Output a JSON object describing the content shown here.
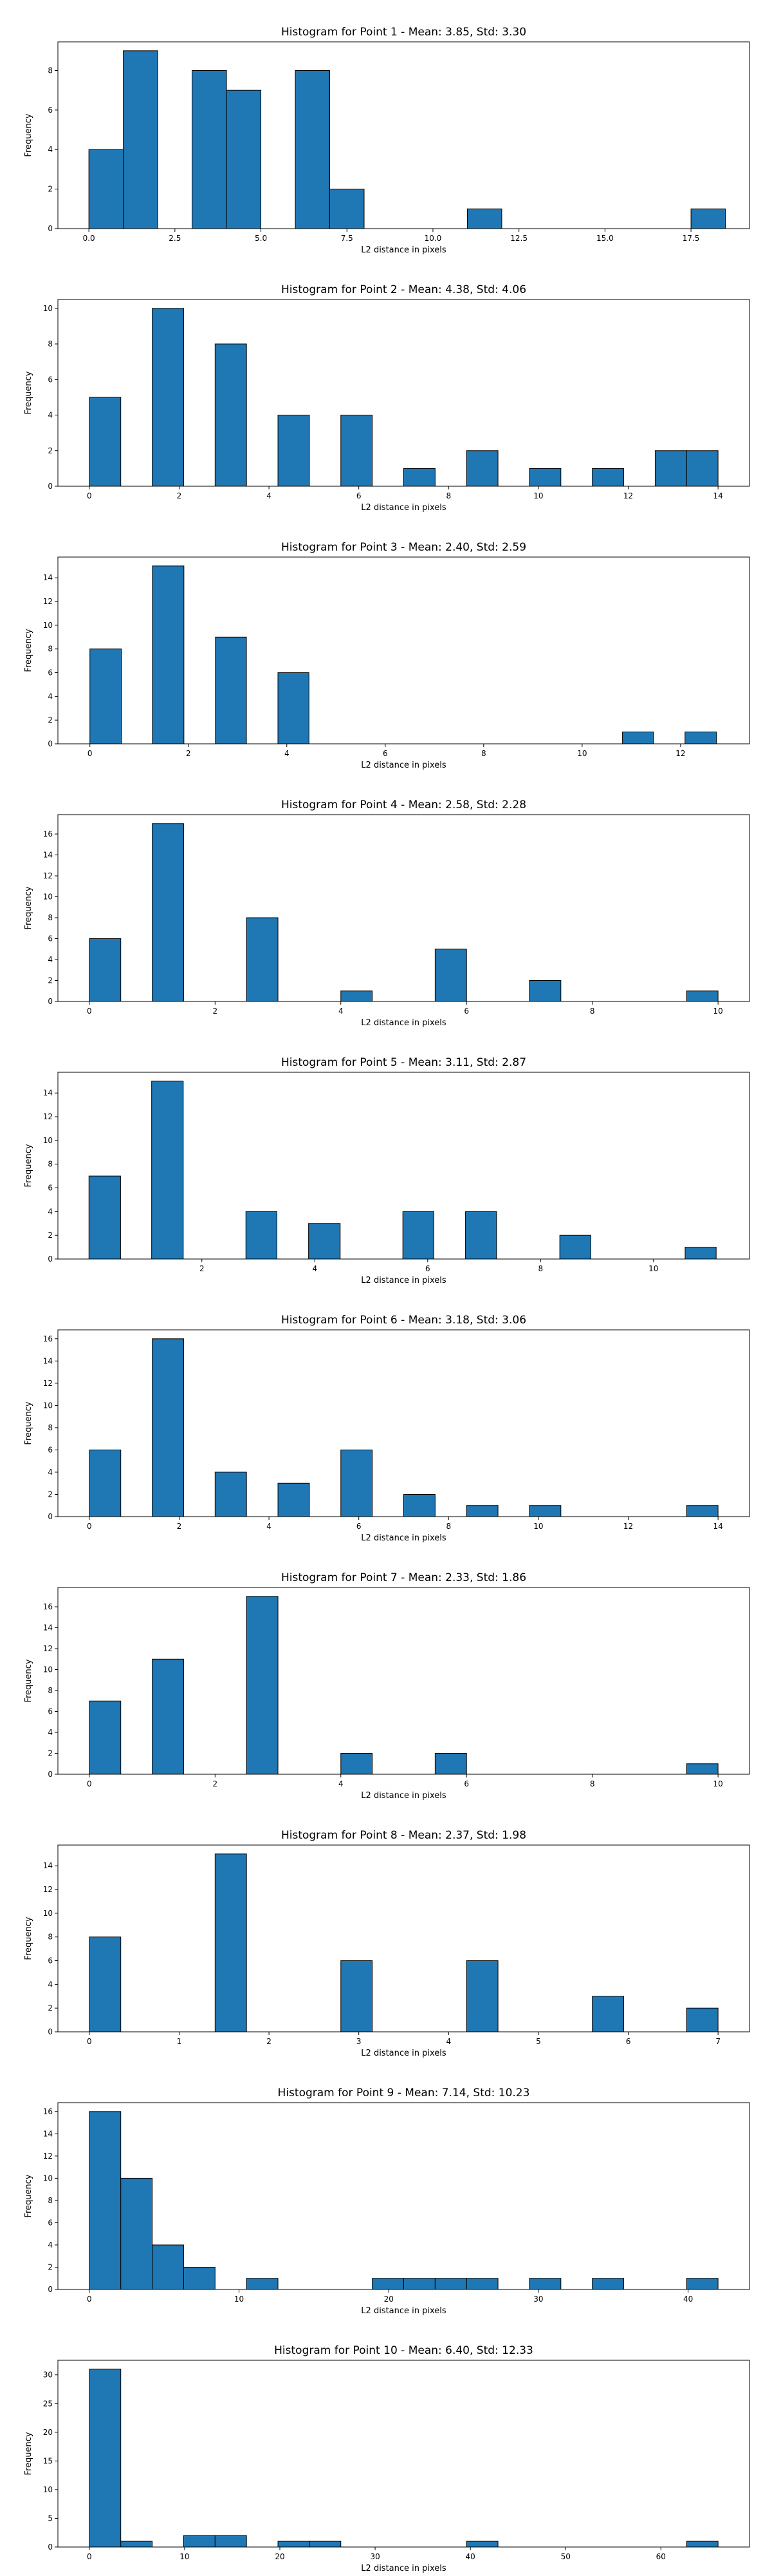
{
  "chart_data": [
    {
      "type": "bar",
      "title": "Histogram for Point 1 - Mean: 3.85, Std: 3.30",
      "xlabel": "L2 distance in pixels",
      "ylabel": "Frequency",
      "color": "#1f77b4",
      "xlim": [
        -0.9,
        19.2
      ],
      "ylim": [
        0,
        9.45
      ],
      "xticks": [
        {
          "v": 0,
          "label": "0.0"
        },
        {
          "v": 2.5,
          "label": "2.5"
        },
        {
          "v": 5,
          "label": "5.0"
        },
        {
          "v": 7.5,
          "label": "7.5"
        },
        {
          "v": 10,
          "label": "10.0"
        },
        {
          "v": 12.5,
          "label": "12.5"
        },
        {
          "v": 15,
          "label": "15.0"
        },
        {
          "v": 17.5,
          "label": "17.5"
        }
      ],
      "yticks": [
        {
          "v": 0,
          "label": "0"
        },
        {
          "v": 2,
          "label": "2"
        },
        {
          "v": 4,
          "label": "4"
        },
        {
          "v": 6,
          "label": "6"
        },
        {
          "v": 8,
          "label": "8"
        }
      ],
      "bins": [
        {
          "x0": 0,
          "x1": 1,
          "count": 4
        },
        {
          "x0": 1,
          "x1": 2,
          "count": 9
        },
        {
          "x0": 3,
          "x1": 4,
          "count": 8
        },
        {
          "x0": 4,
          "x1": 5,
          "count": 7
        },
        {
          "x0": 6,
          "x1": 7,
          "count": 8
        },
        {
          "x0": 7,
          "x1": 8,
          "count": 2
        },
        {
          "x0": 11,
          "x1": 12,
          "count": 1
        },
        {
          "x0": 17.5,
          "x1": 18.5,
          "count": 1
        }
      ]
    },
    {
      "type": "bar",
      "title": "Histogram for Point 2 - Mean: 4.38, Std: 4.06",
      "xlabel": "L2 distance in pixels",
      "ylabel": "Frequency",
      "color": "#1f77b4",
      "xlim": [
        -0.7,
        14.7
      ],
      "ylim": [
        0,
        10.5
      ],
      "xticks": [
        {
          "v": 0,
          "label": "0"
        },
        {
          "v": 2,
          "label": "2"
        },
        {
          "v": 4,
          "label": "4"
        },
        {
          "v": 6,
          "label": "6"
        },
        {
          "v": 8,
          "label": "8"
        },
        {
          "v": 10,
          "label": "10"
        },
        {
          "v": 12,
          "label": "12"
        },
        {
          "v": 14,
          "label": "14"
        }
      ],
      "yticks": [
        {
          "v": 0,
          "label": "0"
        },
        {
          "v": 2,
          "label": "2"
        },
        {
          "v": 4,
          "label": "4"
        },
        {
          "v": 6,
          "label": "6"
        },
        {
          "v": 8,
          "label": "8"
        },
        {
          "v": 10,
          "label": "10"
        }
      ],
      "bins": [
        {
          "x0": 0,
          "x1": 0.7,
          "count": 5
        },
        {
          "x0": 1.4,
          "x1": 2.1,
          "count": 10
        },
        {
          "x0": 2.8,
          "x1": 3.5,
          "count": 8
        },
        {
          "x0": 4.2,
          "x1": 4.9,
          "count": 4
        },
        {
          "x0": 5.6,
          "x1": 6.3,
          "count": 4
        },
        {
          "x0": 7.0,
          "x1": 7.7,
          "count": 1
        },
        {
          "x0": 8.4,
          "x1": 9.1,
          "count": 2
        },
        {
          "x0": 9.8,
          "x1": 10.5,
          "count": 1
        },
        {
          "x0": 11.2,
          "x1": 11.9,
          "count": 1
        },
        {
          "x0": 12.6,
          "x1": 13.3,
          "count": 2
        },
        {
          "x0": 13.3,
          "x1": 14.0,
          "count": 2
        }
      ]
    },
    {
      "type": "bar",
      "title": "Histogram for Point 3 - Mean: 2.40, Std: 2.59",
      "xlabel": "L2 distance in pixels",
      "ylabel": "Frequency",
      "color": "#1f77b4",
      "xlim": [
        -0.65,
        13.4
      ],
      "ylim": [
        0,
        15.75
      ],
      "xticks": [
        {
          "v": 0,
          "label": "0"
        },
        {
          "v": 2,
          "label": "2"
        },
        {
          "v": 4,
          "label": "4"
        },
        {
          "v": 6,
          "label": "6"
        },
        {
          "v": 8,
          "label": "8"
        },
        {
          "v": 10,
          "label": "10"
        },
        {
          "v": 12,
          "label": "12"
        }
      ],
      "yticks": [
        {
          "v": 0,
          "label": "0"
        },
        {
          "v": 2,
          "label": "2"
        },
        {
          "v": 4,
          "label": "4"
        },
        {
          "v": 6,
          "label": "6"
        },
        {
          "v": 8,
          "label": "8"
        },
        {
          "v": 10,
          "label": "10"
        },
        {
          "v": 12,
          "label": "12"
        },
        {
          "v": 14,
          "label": "14"
        }
      ],
      "bins": [
        {
          "x0": 0,
          "x1": 0.64,
          "count": 8
        },
        {
          "x0": 1.27,
          "x1": 1.91,
          "count": 15
        },
        {
          "x0": 2.55,
          "x1": 3.18,
          "count": 9
        },
        {
          "x0": 3.82,
          "x1": 4.45,
          "count": 6
        },
        {
          "x0": 10.82,
          "x1": 11.45,
          "count": 1
        },
        {
          "x0": 12.09,
          "x1": 12.73,
          "count": 1
        }
      ]
    },
    {
      "type": "bar",
      "title": "Histogram for Point 4 - Mean: 2.58, Std: 2.28",
      "xlabel": "L2 distance in pixels",
      "ylabel": "Frequency",
      "color": "#1f77b4",
      "xlim": [
        -0.5,
        10.5
      ],
      "ylim": [
        0,
        17.85
      ],
      "xticks": [
        {
          "v": 0,
          "label": "0"
        },
        {
          "v": 2,
          "label": "2"
        },
        {
          "v": 4,
          "label": "4"
        },
        {
          "v": 6,
          "label": "6"
        },
        {
          "v": 8,
          "label": "8"
        },
        {
          "v": 10,
          "label": "10"
        }
      ],
      "yticks": [
        {
          "v": 0,
          "label": "0"
        },
        {
          "v": 2,
          "label": "2"
        },
        {
          "v": 4,
          "label": "4"
        },
        {
          "v": 6,
          "label": "6"
        },
        {
          "v": 8,
          "label": "8"
        },
        {
          "v": 10,
          "label": "10"
        },
        {
          "v": 12,
          "label": "12"
        },
        {
          "v": 14,
          "label": "14"
        },
        {
          "v": 16,
          "label": "16"
        }
      ],
      "bins": [
        {
          "x0": 0,
          "x1": 0.5,
          "count": 6
        },
        {
          "x0": 1.0,
          "x1": 1.5,
          "count": 17
        },
        {
          "x0": 2.5,
          "x1": 3.0,
          "count": 8
        },
        {
          "x0": 4.0,
          "x1": 4.5,
          "count": 1
        },
        {
          "x0": 5.5,
          "x1": 6.0,
          "count": 5
        },
        {
          "x0": 7.0,
          "x1": 7.5,
          "count": 2
        },
        {
          "x0": 9.5,
          "x1": 10.0,
          "count": 1
        }
      ]
    },
    {
      "type": "bar",
      "title": "Histogram for Point 5 - Mean: 3.11, Std: 2.87",
      "xlabel": "L2 distance in pixels",
      "ylabel": "Frequency",
      "color": "#1f77b4",
      "xlim": [
        -0.55,
        11.7
      ],
      "ylim": [
        0,
        15.75
      ],
      "xticks": [
        {
          "v": 2,
          "label": "2"
        },
        {
          "v": 4,
          "label": "4"
        },
        {
          "v": 6,
          "label": "6"
        },
        {
          "v": 8,
          "label": "8"
        },
        {
          "v": 10,
          "label": "10"
        }
      ],
      "yticks": [
        {
          "v": 0,
          "label": "0"
        },
        {
          "v": 2,
          "label": "2"
        },
        {
          "v": 4,
          "label": "4"
        },
        {
          "v": 6,
          "label": "6"
        },
        {
          "v": 8,
          "label": "8"
        },
        {
          "v": 10,
          "label": "10"
        },
        {
          "v": 12,
          "label": "12"
        },
        {
          "v": 14,
          "label": "14"
        }
      ],
      "bins": [
        {
          "x0": 0,
          "x1": 0.56,
          "count": 7
        },
        {
          "x0": 1.11,
          "x1": 1.67,
          "count": 15
        },
        {
          "x0": 2.78,
          "x1": 3.33,
          "count": 4
        },
        {
          "x0": 3.89,
          "x1": 4.45,
          "count": 3
        },
        {
          "x0": 5.56,
          "x1": 6.11,
          "count": 4
        },
        {
          "x0": 6.67,
          "x1": 7.22,
          "count": 4
        },
        {
          "x0": 8.34,
          "x1": 8.89,
          "count": 2
        },
        {
          "x0": 10.56,
          "x1": 11.11,
          "count": 1
        }
      ]
    },
    {
      "type": "bar",
      "title": "Histogram for Point 6 - Mean: 3.18, Std: 3.06",
      "xlabel": "L2 distance in pixels",
      "ylabel": "Frequency",
      "color": "#1f77b4",
      "xlim": [
        -0.7,
        14.7
      ],
      "ylim": [
        0,
        16.8
      ],
      "xticks": [
        {
          "v": 0,
          "label": "0"
        },
        {
          "v": 2,
          "label": "2"
        },
        {
          "v": 4,
          "label": "4"
        },
        {
          "v": 6,
          "label": "6"
        },
        {
          "v": 8,
          "label": "8"
        },
        {
          "v": 10,
          "label": "10"
        },
        {
          "v": 12,
          "label": "12"
        },
        {
          "v": 14,
          "label": "14"
        }
      ],
      "yticks": [
        {
          "v": 0,
          "label": "0"
        },
        {
          "v": 2,
          "label": "2"
        },
        {
          "v": 4,
          "label": "4"
        },
        {
          "v": 6,
          "label": "6"
        },
        {
          "v": 8,
          "label": "8"
        },
        {
          "v": 10,
          "label": "10"
        },
        {
          "v": 12,
          "label": "12"
        },
        {
          "v": 14,
          "label": "14"
        },
        {
          "v": 16,
          "label": "16"
        }
      ],
      "bins": [
        {
          "x0": 0,
          "x1": 0.7,
          "count": 6
        },
        {
          "x0": 1.4,
          "x1": 2.1,
          "count": 16
        },
        {
          "x0": 2.8,
          "x1": 3.5,
          "count": 4
        },
        {
          "x0": 4.2,
          "x1": 4.9,
          "count": 3
        },
        {
          "x0": 5.6,
          "x1": 6.3,
          "count": 6
        },
        {
          "x0": 7.0,
          "x1": 7.7,
          "count": 2
        },
        {
          "x0": 8.4,
          "x1": 9.1,
          "count": 1
        },
        {
          "x0": 9.8,
          "x1": 10.5,
          "count": 1
        },
        {
          "x0": 13.3,
          "x1": 14.0,
          "count": 1
        }
      ]
    },
    {
      "type": "bar",
      "title": "Histogram for Point 7 - Mean: 2.33, Std: 1.86",
      "xlabel": "L2 distance in pixels",
      "ylabel": "Frequency",
      "color": "#1f77b4",
      "xlim": [
        -0.5,
        10.5
      ],
      "ylim": [
        0,
        17.85
      ],
      "xticks": [
        {
          "v": 0,
          "label": "0"
        },
        {
          "v": 2,
          "label": "2"
        },
        {
          "v": 4,
          "label": "4"
        },
        {
          "v": 6,
          "label": "6"
        },
        {
          "v": 8,
          "label": "8"
        },
        {
          "v": 10,
          "label": "10"
        }
      ],
      "yticks": [
        {
          "v": 0,
          "label": "0"
        },
        {
          "v": 2,
          "label": "2"
        },
        {
          "v": 4,
          "label": "4"
        },
        {
          "v": 6,
          "label": "6"
        },
        {
          "v": 8,
          "label": "8"
        },
        {
          "v": 10,
          "label": "10"
        },
        {
          "v": 12,
          "label": "12"
        },
        {
          "v": 14,
          "label": "14"
        },
        {
          "v": 16,
          "label": "16"
        }
      ],
      "bins": [
        {
          "x0": 0,
          "x1": 0.5,
          "count": 7
        },
        {
          "x0": 1.0,
          "x1": 1.5,
          "count": 11
        },
        {
          "x0": 2.5,
          "x1": 3.0,
          "count": 17
        },
        {
          "x0": 4.0,
          "x1": 4.5,
          "count": 2
        },
        {
          "x0": 5.5,
          "x1": 6.0,
          "count": 2
        },
        {
          "x0": 9.5,
          "x1": 10.0,
          "count": 1
        }
      ]
    },
    {
      "type": "bar",
      "title": "Histogram for Point 8 - Mean: 2.37, Std: 1.98",
      "xlabel": "L2 distance in pixels",
      "ylabel": "Frequency",
      "color": "#1f77b4",
      "xlim": [
        -0.35,
        7.35
      ],
      "ylim": [
        0,
        15.75
      ],
      "xticks": [
        {
          "v": 0,
          "label": "0"
        },
        {
          "v": 1,
          "label": "1"
        },
        {
          "v": 2,
          "label": "2"
        },
        {
          "v": 3,
          "label": "3"
        },
        {
          "v": 4,
          "label": "4"
        },
        {
          "v": 5,
          "label": "5"
        },
        {
          "v": 6,
          "label": "6"
        },
        {
          "v": 7,
          "label": "7"
        }
      ],
      "yticks": [
        {
          "v": 0,
          "label": "0"
        },
        {
          "v": 2,
          "label": "2"
        },
        {
          "v": 4,
          "label": "4"
        },
        {
          "v": 6,
          "label": "6"
        },
        {
          "v": 8,
          "label": "8"
        },
        {
          "v": 10,
          "label": "10"
        },
        {
          "v": 12,
          "label": "12"
        },
        {
          "v": 14,
          "label": "14"
        }
      ],
      "bins": [
        {
          "x0": 0,
          "x1": 0.35,
          "count": 8
        },
        {
          "x0": 1.4,
          "x1": 1.75,
          "count": 15
        },
        {
          "x0": 2.8,
          "x1": 3.15,
          "count": 6
        },
        {
          "x0": 4.2,
          "x1": 4.55,
          "count": 6
        },
        {
          "x0": 5.6,
          "x1": 5.95,
          "count": 3
        },
        {
          "x0": 6.65,
          "x1": 7.0,
          "count": 2
        }
      ]
    },
    {
      "type": "bar",
      "title": "Histogram for Point 9 - Mean: 7.14, Std: 10.23",
      "xlabel": "L2 distance in pixels",
      "ylabel": "Frequency",
      "color": "#1f77b4",
      "xlim": [
        -2.1,
        44.1
      ],
      "ylim": [
        0,
        16.8
      ],
      "xticks": [
        {
          "v": 0,
          "label": "0"
        },
        {
          "v": 10,
          "label": "10"
        },
        {
          "v": 20,
          "label": "20"
        },
        {
          "v": 30,
          "label": "30"
        },
        {
          "v": 40,
          "label": "40"
        }
      ],
      "yticks": [
        {
          "v": 0,
          "label": "0"
        },
        {
          "v": 2,
          "label": "2"
        },
        {
          "v": 4,
          "label": "4"
        },
        {
          "v": 6,
          "label": "6"
        },
        {
          "v": 8,
          "label": "8"
        },
        {
          "v": 10,
          "label": "10"
        },
        {
          "v": 12,
          "label": "12"
        },
        {
          "v": 14,
          "label": "14"
        },
        {
          "v": 16,
          "label": "16"
        }
      ],
      "bins": [
        {
          "x0": 0,
          "x1": 2.1,
          "count": 16
        },
        {
          "x0": 2.1,
          "x1": 4.2,
          "count": 10
        },
        {
          "x0": 4.2,
          "x1": 6.3,
          "count": 4
        },
        {
          "x0": 6.3,
          "x1": 8.4,
          "count": 2
        },
        {
          "x0": 10.5,
          "x1": 12.6,
          "count": 1
        },
        {
          "x0": 18.9,
          "x1": 21.0,
          "count": 1
        },
        {
          "x0": 21.0,
          "x1": 23.1,
          "count": 1
        },
        {
          "x0": 23.1,
          "x1": 25.2,
          "count": 1
        },
        {
          "x0": 25.2,
          "x1": 27.3,
          "count": 1
        },
        {
          "x0": 29.4,
          "x1": 31.5,
          "count": 1
        },
        {
          "x0": 33.6,
          "x1": 35.7,
          "count": 1
        },
        {
          "x0": 39.9,
          "x1": 42.0,
          "count": 1
        }
      ]
    },
    {
      "type": "bar",
      "title": "Histogram for Point 10 - Mean: 6.40, Std: 12.33",
      "xlabel": "L2 distance in pixels",
      "ylabel": "Frequency",
      "color": "#1f77b4",
      "xlim": [
        -3.3,
        69.3
      ],
      "ylim": [
        0,
        32.55
      ],
      "xticks": [
        {
          "v": 0,
          "label": "0"
        },
        {
          "v": 10,
          "label": "10"
        },
        {
          "v": 20,
          "label": "20"
        },
        {
          "v": 30,
          "label": "30"
        },
        {
          "v": 40,
          "label": "40"
        },
        {
          "v": 50,
          "label": "50"
        },
        {
          "v": 60,
          "label": "60"
        }
      ],
      "yticks": [
        {
          "v": 0,
          "label": "0"
        },
        {
          "v": 5,
          "label": "5"
        },
        {
          "v": 10,
          "label": "10"
        },
        {
          "v": 15,
          "label": "15"
        },
        {
          "v": 20,
          "label": "20"
        },
        {
          "v": 25,
          "label": "25"
        },
        {
          "v": 30,
          "label": "30"
        }
      ],
      "bins": [
        {
          "x0": 0,
          "x1": 3.3,
          "count": 31
        },
        {
          "x0": 3.3,
          "x1": 6.6,
          "count": 1
        },
        {
          "x0": 9.9,
          "x1": 13.2,
          "count": 2
        },
        {
          "x0": 13.2,
          "x1": 16.5,
          "count": 2
        },
        {
          "x0": 19.8,
          "x1": 23.1,
          "count": 1
        },
        {
          "x0": 23.1,
          "x1": 26.4,
          "count": 1
        },
        {
          "x0": 39.6,
          "x1": 42.9,
          "count": 1
        },
        {
          "x0": 62.7,
          "x1": 66.0,
          "count": 1
        }
      ]
    }
  ]
}
